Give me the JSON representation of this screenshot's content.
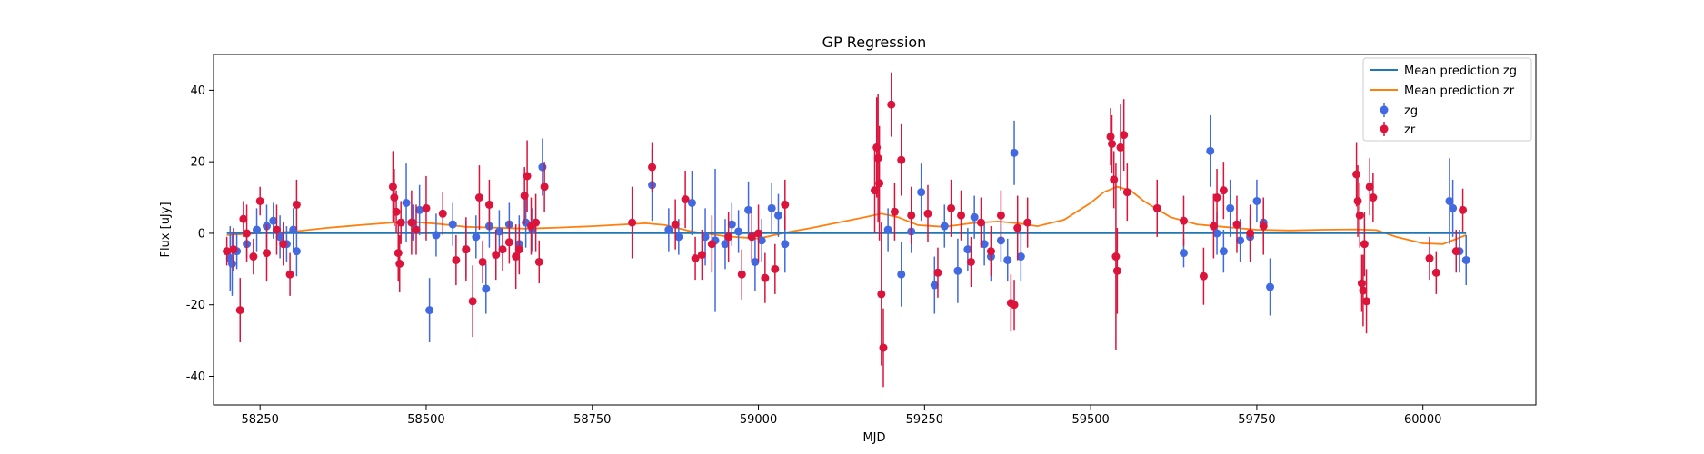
{
  "chart_data": {
    "type": "scatter",
    "title": "GP Regression",
    "xlabel": "MJD",
    "ylabel": "Flux [uJy]",
    "xlim": [
      58180,
      60170
    ],
    "ylim": [
      -48,
      50
    ],
    "xticks": [
      58250,
      58500,
      58750,
      59000,
      59250,
      59500,
      59750,
      60000
    ],
    "yticks": [
      -40,
      -20,
      0,
      20,
      40
    ],
    "legend_position": "top-right",
    "legend": {
      "mean_zg": "Mean prediction zg",
      "mean_zr": "Mean prediction zr",
      "zg": "zg",
      "zr": "zr"
    },
    "colors": {
      "zg": "#4169e1",
      "zr": "#dc143c",
      "mean_zg": "#1f77b4",
      "mean_zr": "#ff7f0e",
      "zg_err": "#4169e1",
      "zr_err": "#dc143c"
    },
    "mean_zg": {
      "x": [
        58200,
        60065
      ],
      "y": [
        0,
        0
      ]
    },
    "mean_zr": {
      "x": [
        58200,
        58250,
        58300,
        58350,
        58400,
        58450,
        58480,
        58520,
        58560,
        58600,
        58650,
        58700,
        58750,
        58800,
        58830,
        58860,
        58900,
        58950,
        59000,
        59040,
        59080,
        59120,
        59160,
        59185,
        59210,
        59240,
        59280,
        59320,
        59360,
        59390,
        59420,
        59460,
        59500,
        59520,
        59540,
        59560,
        59580,
        59620,
        59660,
        59700,
        59750,
        59800,
        59850,
        59900,
        59930,
        59960,
        60000,
        60030,
        60065
      ],
      "y": [
        -0.5,
        0,
        0.5,
        1.5,
        2.3,
        3,
        3.2,
        2.6,
        1.8,
        1.6,
        1.3,
        1.6,
        2.0,
        2.5,
        2.8,
        2.3,
        0.5,
        -0.8,
        -1.5,
        0.2,
        1.5,
        3.0,
        4.5,
        5.5,
        4.5,
        2.3,
        1.8,
        2.8,
        3.3,
        2.8,
        2.0,
        3.8,
        8.5,
        11.5,
        13.0,
        12.0,
        9.0,
        4.5,
        2.5,
        1.8,
        1.0,
        0.8,
        1.0,
        1.1,
        0.9,
        -1.0,
        -2.8,
        -3.0,
        -0.5
      ]
    },
    "series": [
      {
        "name": "zg",
        "x": [
          58205,
          58208,
          58215,
          58230,
          58245,
          58260,
          58270,
          58280,
          58290,
          58300,
          58305,
          58470,
          58480,
          58490,
          58505,
          58515,
          58540,
          58560,
          58575,
          58590,
          58595,
          58610,
          58625,
          58640,
          58650,
          58660,
          58675,
          58840,
          58865,
          58880,
          58900,
          58920,
          58935,
          58950,
          58960,
          58970,
          58985,
          58995,
          59005,
          59020,
          59030,
          59040,
          59195,
          59215,
          59230,
          59245,
          59265,
          59280,
          59300,
          59315,
          59325,
          59340,
          59350,
          59365,
          59375,
          59385,
          59395,
          59640,
          59680,
          59690,
          59700,
          59710,
          59725,
          59740,
          59750,
          59760,
          59770,
          60040,
          60045,
          60055,
          60065
        ],
        "y": [
          -7,
          -8.5,
          -5,
          -3,
          1,
          2,
          3.5,
          -1,
          -3,
          1,
          -5,
          8.5,
          3,
          6.5,
          -21.5,
          -0.5,
          2.5,
          -4.5,
          -1,
          -15.5,
          2,
          0.5,
          2.5,
          -3,
          3,
          1,
          18.5,
          13.5,
          1,
          -1,
          8.5,
          -1,
          -2,
          -3,
          2.5,
          0.5,
          6.5,
          -8,
          -2,
          7,
          5,
          -3,
          1,
          -11.5,
          0.5,
          11.5,
          -14.5,
          2,
          -10.5,
          -4.5,
          4.5,
          -3,
          -6.5,
          -2,
          -7.5,
          22.5,
          -6.5,
          -5.5,
          23,
          0,
          -5,
          7,
          -2,
          -1,
          9,
          3,
          -15,
          9,
          7,
          -5,
          -7.5
        ],
        "err": [
          9,
          9,
          5,
          4,
          6,
          6,
          5,
          6,
          5,
          6,
          7,
          11,
          5,
          7,
          9,
          6,
          6,
          8,
          6,
          7,
          6,
          6,
          6,
          8,
          7,
          6,
          8,
          10,
          6,
          5,
          9,
          8,
          20,
          7,
          6,
          6,
          8,
          8,
          6,
          7,
          6,
          8,
          6,
          9,
          6,
          8,
          8,
          6,
          9,
          6,
          6,
          6,
          7,
          6,
          6,
          9,
          7,
          4,
          10,
          6,
          6,
          8,
          6,
          6,
          6,
          6,
          8,
          12,
          8,
          6,
          7
        ]
      },
      {
        "name": "zr",
        "x": [
          58200,
          58210,
          58220,
          58225,
          58230,
          58240,
          58250,
          58260,
          58275,
          58285,
          58295,
          58305,
          58450,
          58452,
          58455,
          58458,
          58460,
          58462,
          58478,
          58485,
          58500,
          58525,
          58545,
          58560,
          58570,
          58580,
          58585,
          58595,
          58605,
          58615,
          58625,
          58635,
          58640,
          58648,
          58652,
          58658,
          58665,
          58670,
          58678,
          58810,
          58840,
          58875,
          58890,
          58905,
          58915,
          58930,
          58955,
          58975,
          58990,
          59000,
          59010,
          59025,
          59040,
          59175,
          59178,
          59180,
          59182,
          59185,
          59188,
          59200,
          59205,
          59215,
          59230,
          59255,
          59270,
          59290,
          59305,
          59320,
          59335,
          59350,
          59365,
          59380,
          59385,
          59390,
          59405,
          59530,
          59532,
          59535,
          59538,
          59540,
          59545,
          59550,
          59555,
          59600,
          59640,
          59670,
          59685,
          59690,
          59700,
          59720,
          59740,
          59760,
          59900,
          59902,
          59905,
          59908,
          59910,
          59912,
          59915,
          59920,
          59925,
          60010,
          60020,
          60050,
          60060
        ],
        "y": [
          -5,
          -4.5,
          -21.5,
          4,
          0,
          -6.5,
          9,
          -5.5,
          1,
          -3,
          -11.5,
          8,
          13,
          10,
          6,
          -5.5,
          -8.5,
          3,
          3,
          1,
          7,
          5.5,
          -7.5,
          -4.5,
          -19,
          10,
          -8,
          8,
          -6,
          -4.5,
          -2.5,
          -6.5,
          -4.5,
          10.5,
          16,
          2,
          3,
          -8,
          13,
          3,
          18.5,
          2.5,
          9.5,
          -7,
          -6,
          -3,
          -1,
          -11.5,
          -1,
          0,
          -12.5,
          -10,
          8,
          12,
          24,
          21,
          14,
          -17,
          -32,
          36,
          6,
          20.5,
          5,
          5.5,
          -11,
          7,
          5,
          -8,
          3,
          -5,
          5,
          -19.5,
          -20,
          1.5,
          3,
          27,
          25,
          15,
          -6.5,
          -10.5,
          24,
          27.5,
          11.5,
          7,
          3.5,
          -12,
          2,
          10,
          12,
          2.5,
          0,
          2,
          16.5,
          9,
          5,
          -14,
          -16,
          -3,
          -19,
          13,
          10,
          -7,
          -11,
          -5,
          6.5
        ],
        "err": [
          4,
          6,
          9,
          5,
          8,
          5,
          4,
          8,
          7,
          6,
          6,
          7,
          10,
          8,
          6,
          8,
          8,
          6,
          9,
          7,
          9,
          6,
          7,
          9,
          10,
          9,
          6,
          7,
          7,
          6,
          6,
          9,
          7,
          8,
          10,
          8,
          8,
          6,
          7,
          10,
          7,
          7,
          8,
          6,
          7,
          8,
          7,
          7,
          7,
          8,
          7,
          7,
          7,
          12,
          14,
          18,
          16,
          20,
          11,
          9,
          8,
          10,
          8,
          8,
          7,
          8,
          7,
          7,
          7,
          7,
          7,
          8,
          7,
          9,
          7,
          8,
          8,
          8,
          26,
          12,
          12,
          10,
          8,
          8,
          7,
          8,
          9,
          8,
          8,
          8,
          8,
          8,
          9,
          10,
          9,
          8,
          10,
          9,
          9,
          8,
          7,
          6,
          6,
          6,
          6
        ]
      }
    ]
  }
}
